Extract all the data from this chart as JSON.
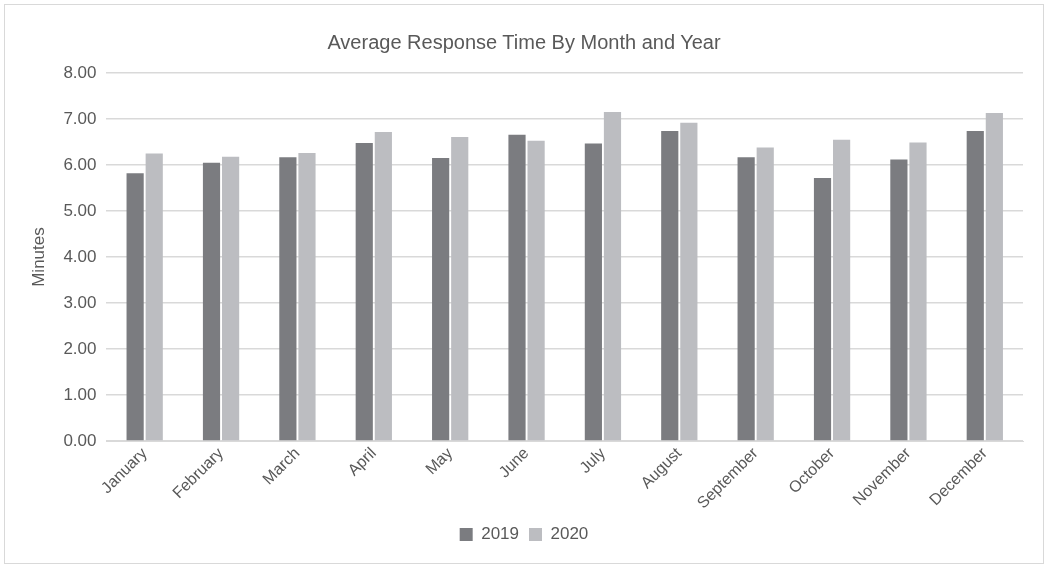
{
  "chart_data": {
    "type": "bar",
    "title": "Average Response Time By Month and Year",
    "ylabel": "Minutes",
    "categories": [
      "January",
      "February",
      "March",
      "April",
      "May",
      "June",
      "July",
      "August",
      "September",
      "October",
      "November",
      "December"
    ],
    "series": [
      {
        "name": "2019",
        "color": "#7b7c80",
        "values": [
          5.82,
          6.05,
          6.17,
          6.48,
          6.15,
          6.66,
          6.47,
          6.74,
          6.17,
          5.72,
          6.12,
          6.74
        ]
      },
      {
        "name": "2020",
        "color": "#bcbdc1",
        "values": [
          6.25,
          6.18,
          6.26,
          6.72,
          6.61,
          6.53,
          7.15,
          6.92,
          6.38,
          6.55,
          6.49,
          7.13
        ]
      }
    ],
    "ylim": [
      0,
      8
    ],
    "yticks": [
      {
        "value": 0,
        "label": "0.00"
      },
      {
        "value": 1,
        "label": "1.00"
      },
      {
        "value": 2,
        "label": "2.00"
      },
      {
        "value": 3,
        "label": "3.00"
      },
      {
        "value": 4,
        "label": "4.00"
      },
      {
        "value": 5,
        "label": "5.00"
      },
      {
        "value": 6,
        "label": "6.00"
      },
      {
        "value": 7,
        "label": "7.00"
      },
      {
        "value": 8,
        "label": "8.00"
      }
    ],
    "grid": "y",
    "legend": "bottom"
  }
}
